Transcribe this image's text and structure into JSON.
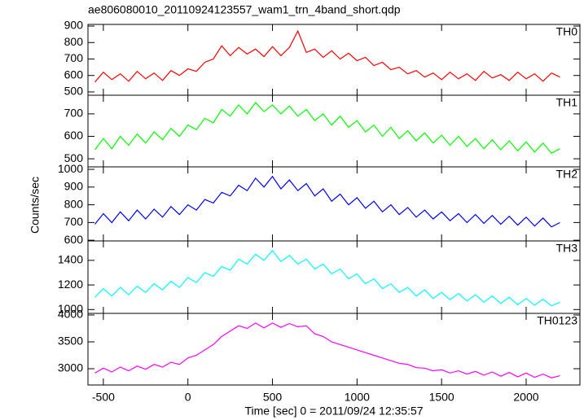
{
  "chart_data": {
    "type": "line",
    "title": "ae806080010_20110924123557_wam1_trn_4band_short.qdp",
    "xlabel": "Time [sec] 0 = 2011/09/24 12:35:57",
    "ylabel": "Counts/sec",
    "xlim": [
      -591,
      2318
    ],
    "xticks": [
      -500,
      0,
      500,
      1000,
      1500,
      2000
    ],
    "x": [
      -550,
      -500,
      -450,
      -400,
      -350,
      -300,
      -250,
      -200,
      -150,
      -100,
      -50,
      0,
      50,
      100,
      150,
      200,
      250,
      300,
      350,
      400,
      450,
      500,
      550,
      600,
      650,
      700,
      750,
      800,
      850,
      900,
      950,
      1000,
      1050,
      1100,
      1150,
      1200,
      1250,
      1300,
      1350,
      1400,
      1450,
      1500,
      1550,
      1600,
      1650,
      1700,
      1750,
      1800,
      1850,
      1900,
      1950,
      2000,
      2050,
      2100,
      2150,
      2200
    ],
    "series": [
      {
        "name": "TH0",
        "color": "#ff0000",
        "ylim": [
          480,
          910
        ],
        "yticks": [
          500,
          600,
          700,
          800,
          900
        ],
        "values": [
          560,
          620,
          575,
          610,
          565,
          625,
          580,
          615,
          570,
          630,
          600,
          640,
          625,
          680,
          700,
          780,
          720,
          770,
          730,
          760,
          715,
          775,
          720,
          770,
          870,
          740,
          760,
          710,
          750,
          700,
          735,
          690,
          710,
          660,
          680,
          635,
          650,
          610,
          630,
          590,
          615,
          575,
          620,
          580,
          610,
          570,
          625,
          585,
          605,
          570,
          620,
          580,
          610,
          565,
          615,
          590
        ]
      },
      {
        "name": "TH1",
        "color": "#00ff00",
        "ylim": [
          464,
          783
        ],
        "yticks": [
          500,
          600,
          700
        ],
        "values": [
          540,
          590,
          545,
          600,
          560,
          610,
          570,
          620,
          585,
          635,
          600,
          650,
          630,
          680,
          660,
          720,
          690,
          740,
          700,
          750,
          710,
          740,
          700,
          735,
          690,
          720,
          670,
          700,
          650,
          690,
          640,
          670,
          620,
          650,
          600,
          640,
          590,
          625,
          580,
          615,
          570,
          605,
          560,
          600,
          555,
          590,
          545,
          585,
          540,
          580,
          535,
          575,
          530,
          570,
          525,
          545
        ]
      },
      {
        "name": "TH2",
        "color": "#0000ff",
        "ylim": [
          596,
          1014
        ],
        "yticks": [
          600,
          700,
          800,
          900,
          1000
        ],
        "values": [
          690,
          750,
          700,
          760,
          710,
          770,
          720,
          775,
          730,
          790,
          745,
          800,
          770,
          830,
          810,
          870,
          850,
          910,
          880,
          950,
          900,
          960,
          890,
          940,
          880,
          920,
          850,
          890,
          820,
          860,
          800,
          840,
          780,
          820,
          760,
          800,
          745,
          785,
          730,
          770,
          720,
          760,
          710,
          750,
          700,
          745,
          695,
          740,
          690,
          735,
          685,
          730,
          680,
          725,
          675,
          700
        ]
      },
      {
        "name": "TH3",
        "color": "#00ffff",
        "ylim": [
          969,
          1558
        ],
        "yticks": [
          1000,
          1200,
          1400
        ],
        "values": [
          1100,
          1170,
          1110,
          1180,
          1120,
          1190,
          1140,
          1210,
          1160,
          1230,
          1180,
          1260,
          1220,
          1300,
          1270,
          1350,
          1320,
          1410,
          1370,
          1450,
          1400,
          1480,
          1390,
          1440,
          1370,
          1410,
          1330,
          1370,
          1290,
          1330,
          1250,
          1290,
          1210,
          1250,
          1170,
          1210,
          1140,
          1180,
          1110,
          1160,
          1090,
          1140,
          1080,
          1130,
          1070,
          1120,
          1060,
          1110,
          1050,
          1100,
          1040,
          1090,
          1035,
          1085,
          1030,
          1060
        ]
      },
      {
        "name": "TH0123",
        "color": "#ff00ff",
        "ylim": [
          2697,
          4030
        ],
        "yticks": [
          3000,
          3500,
          4000
        ],
        "values": [
          2920,
          3010,
          2940,
          3030,
          2960,
          3050,
          2990,
          3080,
          3030,
          3120,
          3080,
          3200,
          3250,
          3350,
          3450,
          3600,
          3700,
          3800,
          3750,
          3850,
          3760,
          3850,
          3770,
          3840,
          3780,
          3800,
          3650,
          3600,
          3500,
          3450,
          3400,
          3350,
          3300,
          3250,
          3200,
          3150,
          3100,
          3080,
          3020,
          3010,
          2960,
          2980,
          2920,
          2960,
          2900,
          2950,
          2880,
          2940,
          2860,
          2930,
          2850,
          2920,
          2840,
          2900,
          2830,
          2870
        ]
      }
    ]
  }
}
